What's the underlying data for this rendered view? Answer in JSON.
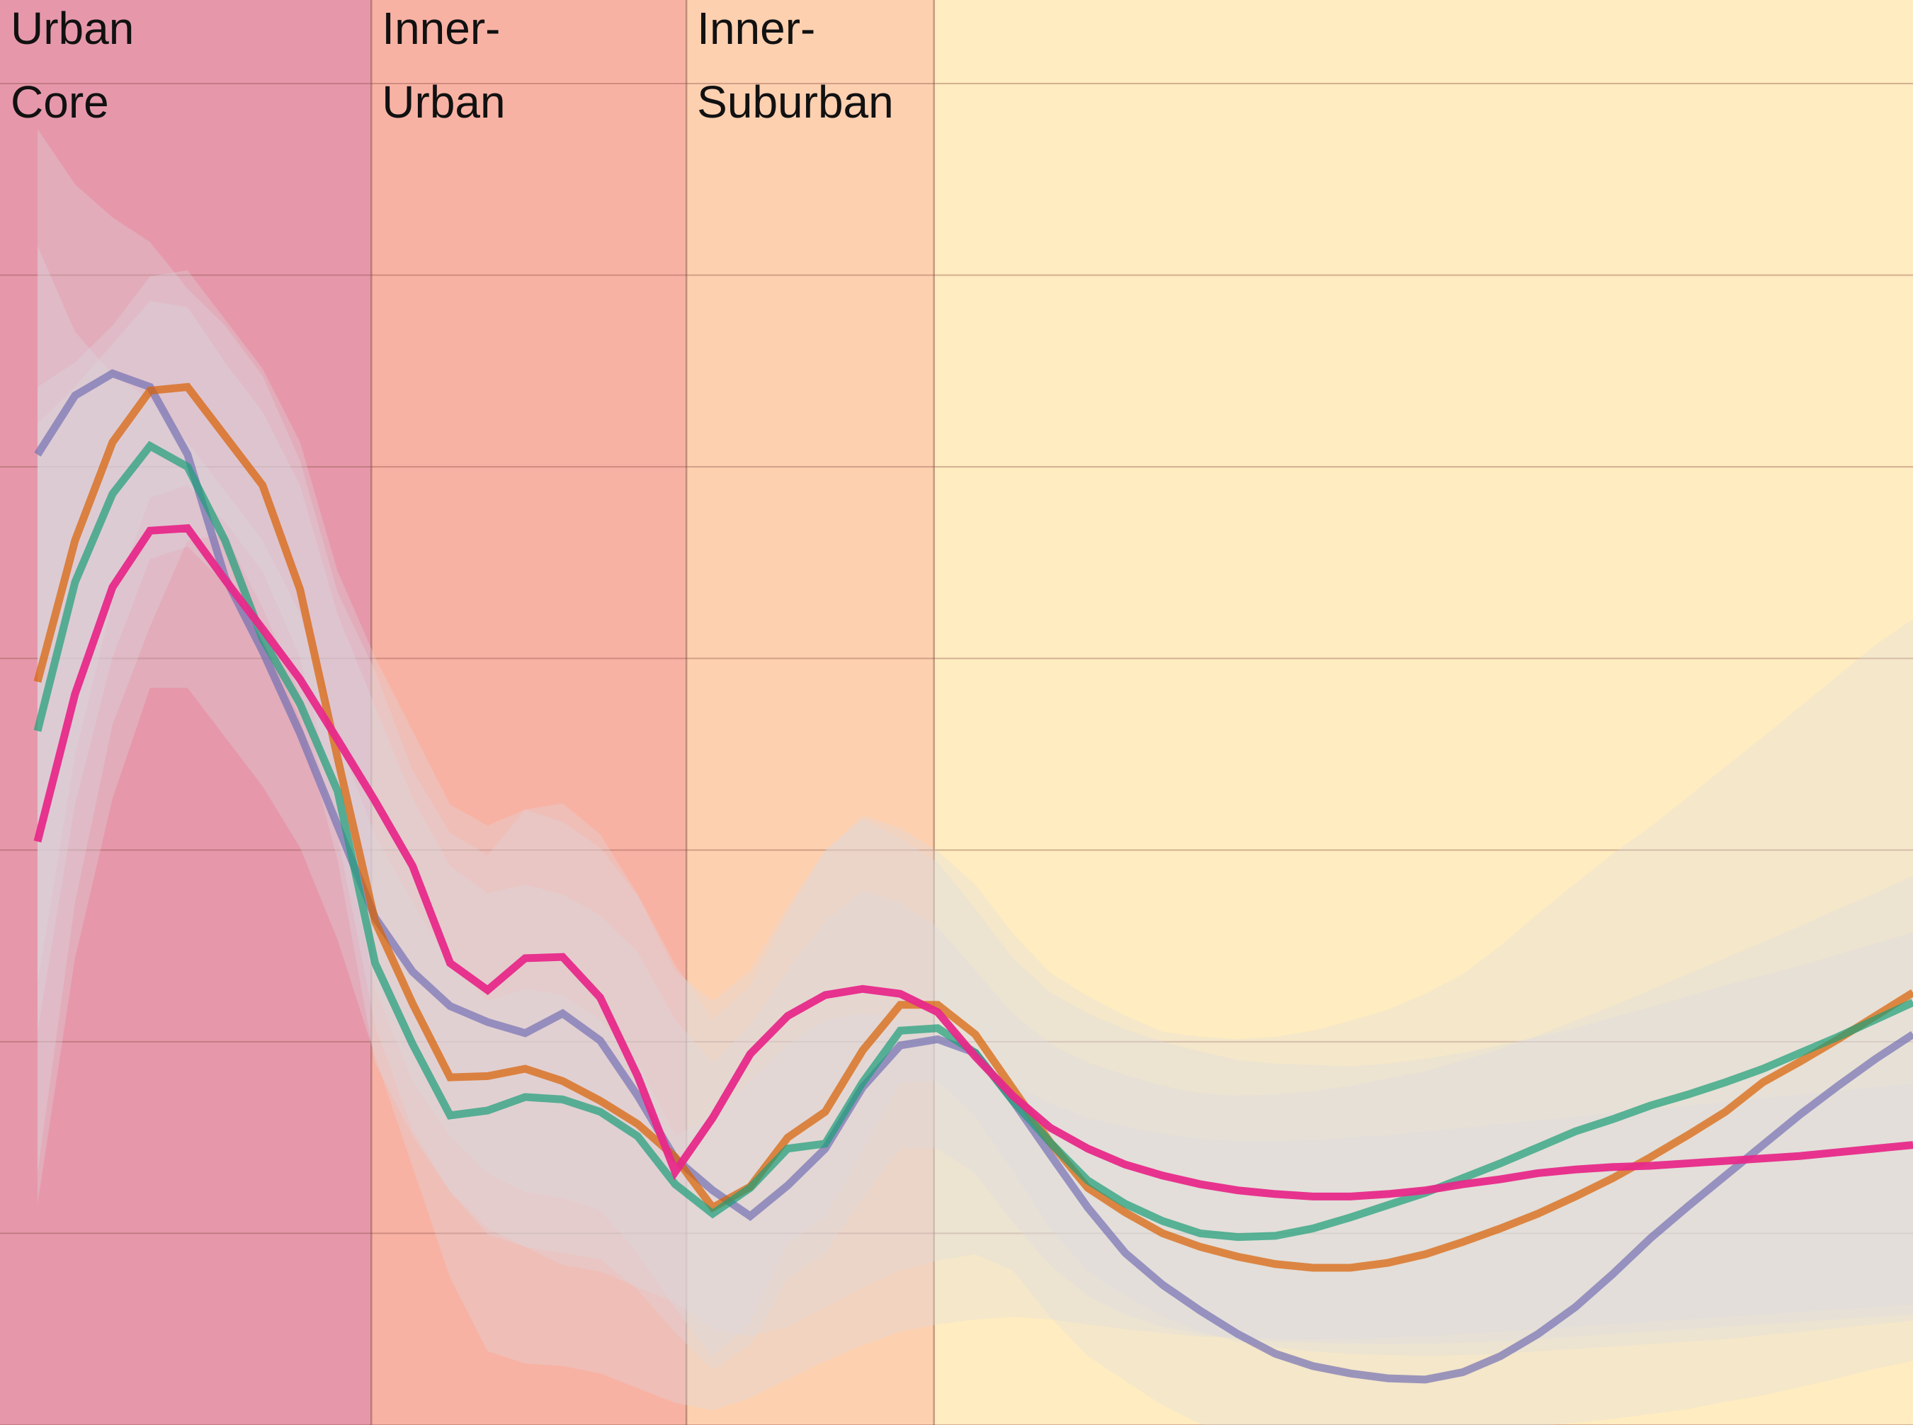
{
  "chart_data": {
    "type": "line",
    "title": "",
    "xlabel": "",
    "ylabel": "",
    "grid": true,
    "ylim": [
      0,
      1160
    ],
    "xlim": [
      -1,
      50
    ],
    "zones": [
      {
        "label_lines": [
          "Urban",
          "Core"
        ],
        "x_start": -1,
        "x_end": 8.9,
        "color": "#e698aa"
      },
      {
        "label_lines": [
          "Inner-",
          "Urban"
        ],
        "x_start": 8.9,
        "x_end": 17.3,
        "color": "#f8b2a4"
      },
      {
        "label_lines": [
          "Inner-",
          "Suburban"
        ],
        "x_start": 17.3,
        "x_end": 23.9,
        "color": "#fdd0b0"
      },
      {
        "label_lines": [],
        "x_start": 23.9,
        "x_end": 50,
        "color": "#ffecc0"
      }
    ],
    "y_gridlines": [
      0,
      156,
      312,
      468,
      624,
      780,
      936,
      1092
    ],
    "x": [
      0,
      1,
      2,
      3,
      4,
      5,
      6,
      7,
      8,
      9,
      10,
      11,
      12,
      13,
      14,
      15,
      16,
      17,
      18,
      19,
      20,
      21,
      22,
      23,
      24,
      25,
      26,
      27,
      28,
      29,
      30,
      31,
      32,
      33,
      34,
      35,
      36,
      37,
      38,
      39,
      40,
      41,
      42,
      43,
      44,
      45,
      46,
      47,
      48,
      49,
      50
    ],
    "series": [
      {
        "color": "#7570b3",
        "values": [
          790,
          838,
          856,
          845,
          790,
          690,
          630,
          563,
          488,
          413,
          369,
          341,
          328,
          319,
          335,
          313,
          268,
          217,
          191,
          170,
          195,
          225,
          275,
          309,
          314,
          303,
          264,
          220,
          177,
          140,
          114,
          93,
          74,
          58,
          48,
          42,
          38,
          37,
          43,
          56,
          74,
          96,
          123,
          152,
          178,
          203,
          228,
          253,
          276,
          298,
          318
        ],
        "band_upper": [
          1055,
          1010,
          983,
          963,
          925,
          895,
          854,
          785,
          678,
          614,
          533,
          482,
          464,
          501,
          506,
          481,
          432,
          375,
          330,
          357,
          417,
          467,
          496,
          486,
          467,
          440,
          400,
          368,
          349,
          333,
          320,
          316,
          314,
          316,
          321,
          329,
          338,
          351,
          367,
          390,
          416,
          441,
          465,
          487,
          511,
          536,
          560,
          585,
          610,
          635,
          656
        ],
        "band_lower": [
          205,
          425,
          570,
          650,
          720,
          725,
          665,
          595,
          480,
          325,
          240,
          190,
          155,
          145,
          130,
          125,
          112,
          100,
          78,
          72,
          80,
          96,
          112,
          126,
          134,
          139,
          126,
          88,
          56,
          36,
          16,
          1,
          -9,
          -11,
          -11,
          -13,
          -14,
          -15,
          -11,
          -6,
          -1,
          2,
          5,
          9,
          13,
          19,
          24,
          31,
          38,
          46,
          52
        ]
      },
      {
        "color": "#d95f02",
        "values": [
          605,
          720,
          800,
          842,
          845,
          805,
          765,
          680,
          543,
          410,
          343,
          283,
          284,
          290,
          280,
          264,
          245,
          218,
          177,
          194,
          234,
          255,
          305,
          342,
          342,
          318,
          274,
          230,
          193,
          173,
          156,
          145,
          137,
          131,
          128,
          128,
          132,
          139,
          149,
          160,
          172,
          186,
          201,
          218,
          236,
          255,
          279,
          296,
          314,
          333,
          352
        ],
        "band_upper": [
          845,
          865,
          895,
          935,
          940,
          900,
          860,
          800,
          695,
          625,
          565,
          505,
          488,
          501,
          491,
          470,
          431,
          370,
          345,
          370,
          422,
          468,
          493,
          478,
          458,
          420,
          380,
          352,
          335,
          322,
          312,
          304,
          297,
          294,
          293,
          292,
          294,
          298,
          303,
          309,
          316,
          323,
          332,
          340,
          349,
          358,
          366,
          374,
          383,
          392,
          401
        ],
        "band_lower": [
          360,
          545,
          670,
          755,
          765,
          735,
          695,
          625,
          500,
          355,
          280,
          235,
          205,
          190,
          185,
          175,
          140,
          95,
          56,
          83,
          147,
          170,
          223,
          279,
          280,
          251,
          207,
          160,
          125,
          105,
          88,
          76,
          68,
          63,
          60,
          58,
          57,
          56,
          57,
          58,
          60,
          62,
          64,
          66,
          68,
          70,
          73,
          76,
          79,
          82,
          85
        ]
      },
      {
        "color": "#1b9e77",
        "values": [
          565,
          686,
          758,
          797,
          780,
          720,
          640,
          587,
          516,
          376,
          310,
          252,
          256,
          267,
          265,
          255,
          235,
          196,
          172,
          193,
          225,
          229,
          279,
          321,
          323,
          303,
          264,
          230,
          199,
          180,
          166,
          156,
          153,
          154,
          160,
          169,
          179,
          189,
          201,
          213,
          226,
          239,
          249,
          260,
          269,
          279,
          290,
          303,
          316,
          330,
          344
        ],
        "band_upper": [
          815,
          845,
          880,
          915,
          910,
          865,
          825,
          765,
          660,
          585,
          510,
          455,
          433,
          440,
          432,
          415,
          385,
          330,
          295,
          325,
          370,
          410,
          435,
          425,
          405,
          370,
          335,
          310,
          295,
          285,
          276,
          270,
          268,
          269,
          272,
          276,
          282,
          288,
          297,
          306,
          317,
          329,
          341,
          354,
          367,
          380,
          393,
          406,
          420,
          433,
          447
        ],
        "band_lower": [
          320,
          505,
          625,
          705,
          715,
          685,
          640,
          575,
          460,
          295,
          235,
          190,
          160,
          145,
          140,
          135,
          110,
          75,
          45,
          65,
          120,
          140,
          185,
          225,
          225,
          205,
          165,
          130,
          105,
          90,
          80,
          74,
          70,
          68,
          67,
          66,
          66,
          66,
          67,
          68,
          70,
          72,
          74,
          76,
          78,
          80,
          82,
          84,
          86,
          88,
          90
        ]
      },
      {
        "color": "#e7298a",
        "values": [
          475,
          595,
          682,
          728,
          730,
          688,
          648,
          607,
          558,
          508,
          455,
          376,
          354,
          380,
          381,
          348,
          284,
          206,
          250,
          302,
          333,
          350,
          355,
          351,
          336,
          300,
          268,
          242,
          225,
          212,
          203,
          196,
          191,
          188,
          186,
          186,
          188,
          191,
          196,
          200,
          205,
          208,
          210,
          211,
          213,
          215,
          217,
          219,
          222,
          225,
          228
        ],
        "band_upper": [
          960,
          890,
          855,
          835,
          800,
          760,
          720,
          660,
          560,
          480,
          425,
          375,
          345,
          355,
          350,
          330,
          295,
          235,
          252,
          280,
          310,
          330,
          335,
          330,
          320,
          300,
          278,
          262,
          250,
          243,
          237,
          233,
          231,
          231,
          232,
          234,
          236,
          239,
          242,
          245,
          248,
          251,
          254,
          257,
          260,
          263,
          266,
          269,
          272,
          275,
          278
        ],
        "band_lower": [
          180,
          380,
          510,
          600,
          600,
          560,
          520,
          470,
          395,
          300,
          210,
          120,
          60,
          50,
          48,
          42,
          30,
          18,
          12,
          22,
          37,
          52,
          65,
          76,
          82,
          86,
          88,
          86,
          82,
          78,
          75,
          72,
          71,
          70,
          70,
          70,
          71,
          72,
          74,
          76,
          78,
          80,
          82,
          84,
          86,
          88,
          90,
          92,
          94,
          96,
          98
        ]
      }
    ]
  }
}
